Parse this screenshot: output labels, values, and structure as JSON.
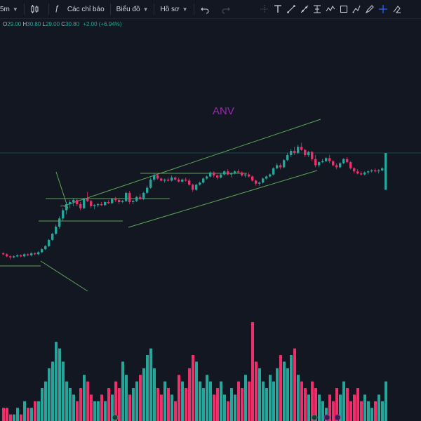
{
  "toolbar": {
    "interval": "5m",
    "indicators_label": "Các chỉ báo",
    "chart_label": "Biểu đồ",
    "profile_label": "Hồ sơ"
  },
  "legend": {
    "o_label": "O",
    "o_value": "29.00",
    "h_label": "H",
    "h_value": "30.80",
    "l_label": "L",
    "l_value": "29.00",
    "c_label": "C",
    "c_value": "30.80",
    "change": "+2.00 (+6.94%)"
  },
  "symbol": "ANV",
  "icons": [
    "candles-icon",
    "fx-icon",
    "undo-icon",
    "redo-icon",
    "crosshair-icon",
    "text-icon",
    "trend-line-icon",
    "ray-icon",
    "fib-icon",
    "pattern-icon",
    "rectangle-icon",
    "measure-icon",
    "cursor-icon",
    "brush-icon"
  ],
  "colors": {
    "up": "#26a69a",
    "down": "#ef2f6b",
    "symbol": "#9c27b0",
    "trendline": "#5fa55a",
    "background": "#131722"
  },
  "chart_data": {
    "type": "candlestick",
    "candles": [
      [
        25.9,
        25.95,
        25.8,
        25.85
      ],
      [
        25.85,
        25.9,
        25.7,
        25.75
      ],
      [
        25.75,
        25.8,
        25.6,
        25.7
      ],
      [
        25.7,
        25.8,
        25.65,
        25.75
      ],
      [
        25.75,
        25.85,
        25.7,
        25.8
      ],
      [
        25.8,
        25.85,
        25.7,
        25.75
      ],
      [
        25.75,
        25.9,
        25.7,
        25.85
      ],
      [
        25.85,
        25.9,
        25.75,
        25.8
      ],
      [
        25.8,
        25.95,
        25.75,
        25.9
      ],
      [
        25.9,
        25.95,
        25.8,
        25.85
      ],
      [
        25.85,
        26.0,
        25.8,
        25.95
      ],
      [
        25.95,
        26.15,
        25.9,
        26.1
      ],
      [
        26.1,
        26.3,
        26.05,
        26.25
      ],
      [
        26.25,
        26.6,
        26.2,
        26.55
      ],
      [
        26.55,
        26.9,
        26.5,
        26.85
      ],
      [
        26.85,
        27.3,
        26.8,
        27.2
      ],
      [
        27.2,
        27.7,
        27.1,
        27.6
      ],
      [
        27.6,
        28.1,
        27.5,
        28.0
      ],
      [
        28.0,
        28.4,
        27.8,
        28.3
      ],
      [
        28.3,
        28.5,
        28.1,
        28.4
      ],
      [
        28.4,
        28.6,
        28.2,
        28.5
      ],
      [
        28.5,
        28.55,
        28.2,
        28.3
      ],
      [
        28.3,
        28.4,
        28.0,
        28.1
      ],
      [
        28.1,
        28.6,
        28.05,
        28.55
      ],
      [
        28.55,
        28.9,
        28.4,
        28.45
      ],
      [
        28.45,
        28.5,
        28.1,
        28.2
      ],
      [
        28.2,
        28.3,
        28.05,
        28.25
      ],
      [
        28.25,
        28.35,
        28.15,
        28.3
      ],
      [
        28.3,
        28.4,
        28.2,
        28.25
      ],
      [
        28.25,
        28.45,
        28.2,
        28.4
      ],
      [
        28.4,
        28.5,
        28.3,
        28.35
      ],
      [
        28.35,
        28.6,
        28.3,
        28.55
      ],
      [
        28.55,
        28.65,
        28.4,
        28.5
      ],
      [
        28.5,
        28.55,
        28.3,
        28.4
      ],
      [
        28.4,
        28.5,
        28.35,
        28.45
      ],
      [
        28.45,
        28.9,
        28.4,
        28.85
      ],
      [
        28.85,
        28.95,
        28.3,
        28.4
      ],
      [
        28.4,
        28.5,
        28.3,
        28.45
      ],
      [
        28.45,
        28.7,
        28.4,
        28.65
      ],
      [
        28.65,
        28.8,
        28.5,
        28.55
      ],
      [
        28.55,
        28.9,
        28.5,
        28.85
      ],
      [
        28.85,
        29.2,
        28.8,
        29.1
      ],
      [
        29.1,
        29.6,
        29.05,
        29.5
      ],
      [
        29.5,
        29.8,
        29.4,
        29.7
      ],
      [
        29.7,
        29.8,
        29.5,
        29.55
      ],
      [
        29.55,
        29.6,
        29.4,
        29.45
      ],
      [
        29.45,
        29.55,
        29.35,
        29.5
      ],
      [
        29.5,
        29.6,
        29.4,
        29.45
      ],
      [
        29.45,
        29.7,
        29.4,
        29.6
      ],
      [
        29.6,
        29.65,
        29.45,
        29.5
      ],
      [
        29.5,
        29.6,
        29.35,
        29.4
      ],
      [
        29.4,
        29.55,
        29.35,
        29.5
      ],
      [
        29.5,
        29.6,
        29.4,
        29.45
      ],
      [
        29.45,
        29.55,
        29.2,
        29.25
      ],
      [
        29.25,
        29.3,
        28.9,
        29.0
      ],
      [
        29.0,
        29.3,
        28.95,
        29.25
      ],
      [
        29.25,
        29.4,
        29.2,
        29.35
      ],
      [
        29.35,
        29.6,
        29.3,
        29.55
      ],
      [
        29.55,
        29.7,
        29.5,
        29.65
      ],
      [
        29.65,
        29.9,
        29.6,
        29.85
      ],
      [
        29.85,
        29.9,
        29.6,
        29.7
      ],
      [
        29.7,
        29.75,
        29.5,
        29.6
      ],
      [
        29.6,
        29.8,
        29.55,
        29.75
      ],
      [
        29.75,
        29.95,
        29.7,
        29.9
      ],
      [
        29.9,
        30.0,
        29.7,
        29.75
      ],
      [
        29.75,
        29.85,
        29.6,
        29.8
      ],
      [
        29.8,
        29.95,
        29.75,
        29.9
      ],
      [
        29.9,
        30.0,
        29.8,
        29.85
      ],
      [
        29.85,
        29.9,
        29.65,
        29.7
      ],
      [
        29.7,
        29.8,
        29.6,
        29.75
      ],
      [
        29.75,
        29.85,
        29.6,
        29.65
      ],
      [
        29.65,
        29.7,
        29.4,
        29.45
      ],
      [
        29.45,
        29.5,
        29.2,
        29.3
      ],
      [
        29.3,
        29.4,
        29.2,
        29.35
      ],
      [
        29.35,
        29.6,
        29.3,
        29.55
      ],
      [
        29.55,
        29.7,
        29.5,
        29.65
      ],
      [
        29.65,
        29.8,
        29.6,
        29.75
      ],
      [
        29.75,
        30.1,
        29.7,
        30.05
      ],
      [
        30.05,
        30.3,
        30.0,
        30.2
      ],
      [
        30.2,
        30.3,
        30.0,
        30.1
      ],
      [
        30.1,
        30.5,
        30.05,
        30.45
      ],
      [
        30.45,
        30.8,
        30.4,
        30.7
      ],
      [
        30.7,
        31.0,
        30.6,
        30.9
      ],
      [
        30.9,
        31.1,
        30.7,
        30.8
      ],
      [
        30.8,
        31.2,
        30.75,
        31.1
      ],
      [
        31.1,
        31.3,
        30.9,
        30.95
      ],
      [
        30.95,
        31.0,
        30.6,
        30.7
      ],
      [
        30.7,
        30.9,
        30.6,
        30.85
      ],
      [
        30.85,
        30.9,
        30.4,
        30.5
      ],
      [
        30.5,
        30.7,
        30.1,
        30.2
      ],
      [
        30.2,
        30.4,
        30.1,
        30.35
      ],
      [
        30.35,
        30.5,
        30.3,
        30.4
      ],
      [
        30.4,
        30.6,
        30.35,
        30.55
      ],
      [
        30.55,
        30.7,
        30.3,
        30.4
      ],
      [
        30.4,
        30.45,
        30.15,
        30.2
      ],
      [
        30.2,
        30.3,
        30.0,
        30.1
      ],
      [
        30.1,
        30.35,
        30.05,
        30.3
      ],
      [
        30.3,
        30.55,
        30.25,
        30.5
      ],
      [
        30.5,
        30.6,
        30.3,
        30.35
      ],
      [
        30.35,
        30.4,
        30.0,
        30.05
      ],
      [
        30.05,
        30.1,
        29.8,
        29.9
      ],
      [
        29.9,
        30.0,
        29.75,
        29.8
      ],
      [
        29.8,
        29.9,
        29.7,
        29.75
      ],
      [
        29.75,
        29.9,
        29.7,
        29.85
      ],
      [
        29.85,
        29.95,
        29.75,
        29.9
      ],
      [
        29.9,
        30.0,
        29.85,
        29.95
      ],
      [
        29.95,
        30.05,
        29.85,
        29.9
      ],
      [
        29.9,
        30.0,
        29.8,
        29.95
      ],
      [
        29.95,
        30.1,
        29.9,
        30.05
      ],
      [
        29.0,
        30.8,
        29.0,
        30.8
      ]
    ],
    "volume": [
      2,
      2,
      1,
      1,
      2,
      1,
      3,
      2,
      2,
      3,
      3,
      5,
      6,
      8,
      9,
      12,
      11,
      9,
      6,
      5,
      4,
      3,
      5,
      7,
      6,
      4,
      3,
      3,
      4,
      3,
      5,
      4,
      6,
      5,
      9,
      7,
      4,
      5,
      6,
      7,
      8,
      10,
      11,
      8,
      5,
      4,
      6,
      5,
      4,
      3,
      7,
      6,
      5,
      8,
      10,
      9,
      6,
      5,
      7,
      6,
      4,
      5,
      6,
      4,
      3,
      5,
      4,
      6,
      5,
      7,
      6,
      15,
      9,
      8,
      6,
      5,
      7,
      6,
      8,
      10,
      9,
      8,
      10,
      11,
      7,
      6,
      5,
      4,
      6,
      5,
      4,
      3,
      2,
      4,
      3,
      5,
      4,
      6,
      5,
      3,
      4,
      5,
      3,
      4,
      3,
      2,
      3,
      4,
      3,
      6
    ],
    "current_price": 30.8
  }
}
